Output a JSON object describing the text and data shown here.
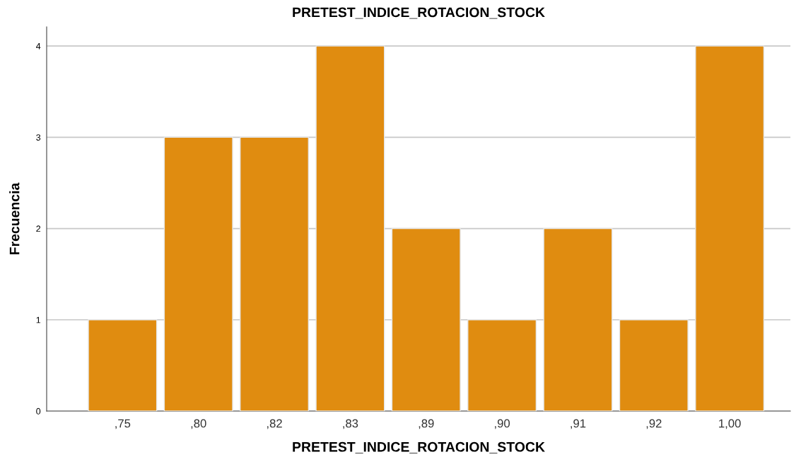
{
  "chart_data": {
    "type": "bar",
    "title": "PRETEST_INDICE_ROTACION_STOCK",
    "xlabel": "PRETEST_INDICE_ROTACION_STOCK",
    "ylabel": "Frecuencia",
    "categories": [
      ",75",
      ",80",
      ",82",
      ",83",
      ",89",
      ",90",
      ",91",
      ",92",
      "1,00"
    ],
    "values": [
      1,
      3,
      3,
      4,
      2,
      1,
      2,
      1,
      4
    ],
    "color": "#e08c10",
    "ylim": [
      0,
      4.21
    ],
    "yticks": [
      0,
      1,
      2,
      3,
      4
    ],
    "grid": "y"
  }
}
